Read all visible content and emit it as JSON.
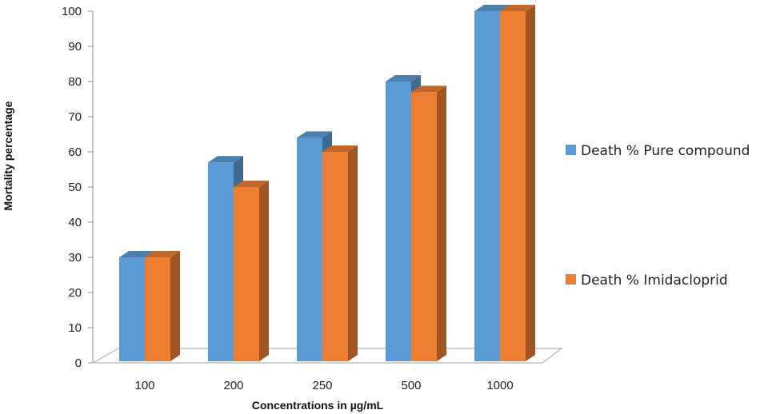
{
  "chart_data": {
    "type": "bar",
    "style": "3d-clustered-column",
    "categories": [
      "100",
      "200",
      "250",
      "500",
      "1000"
    ],
    "series": [
      {
        "name": "Death % Pure compound",
        "values": [
          30,
          57,
          64,
          80,
          100
        ],
        "color": "#5B9BD5"
      },
      {
        "name": "Death % Imidacloprid",
        "values": [
          30,
          50,
          60,
          77,
          100
        ],
        "color": "#ED7D31"
      }
    ],
    "xlabel": "Concentrations in µg/mL",
    "ylabel": "Mortality percentage",
    "ylim": [
      0,
      100
    ],
    "yticks": [
      0,
      10,
      20,
      30,
      40,
      50,
      60,
      70,
      80,
      90,
      100
    ],
    "grid": false,
    "legend_position": "right"
  }
}
